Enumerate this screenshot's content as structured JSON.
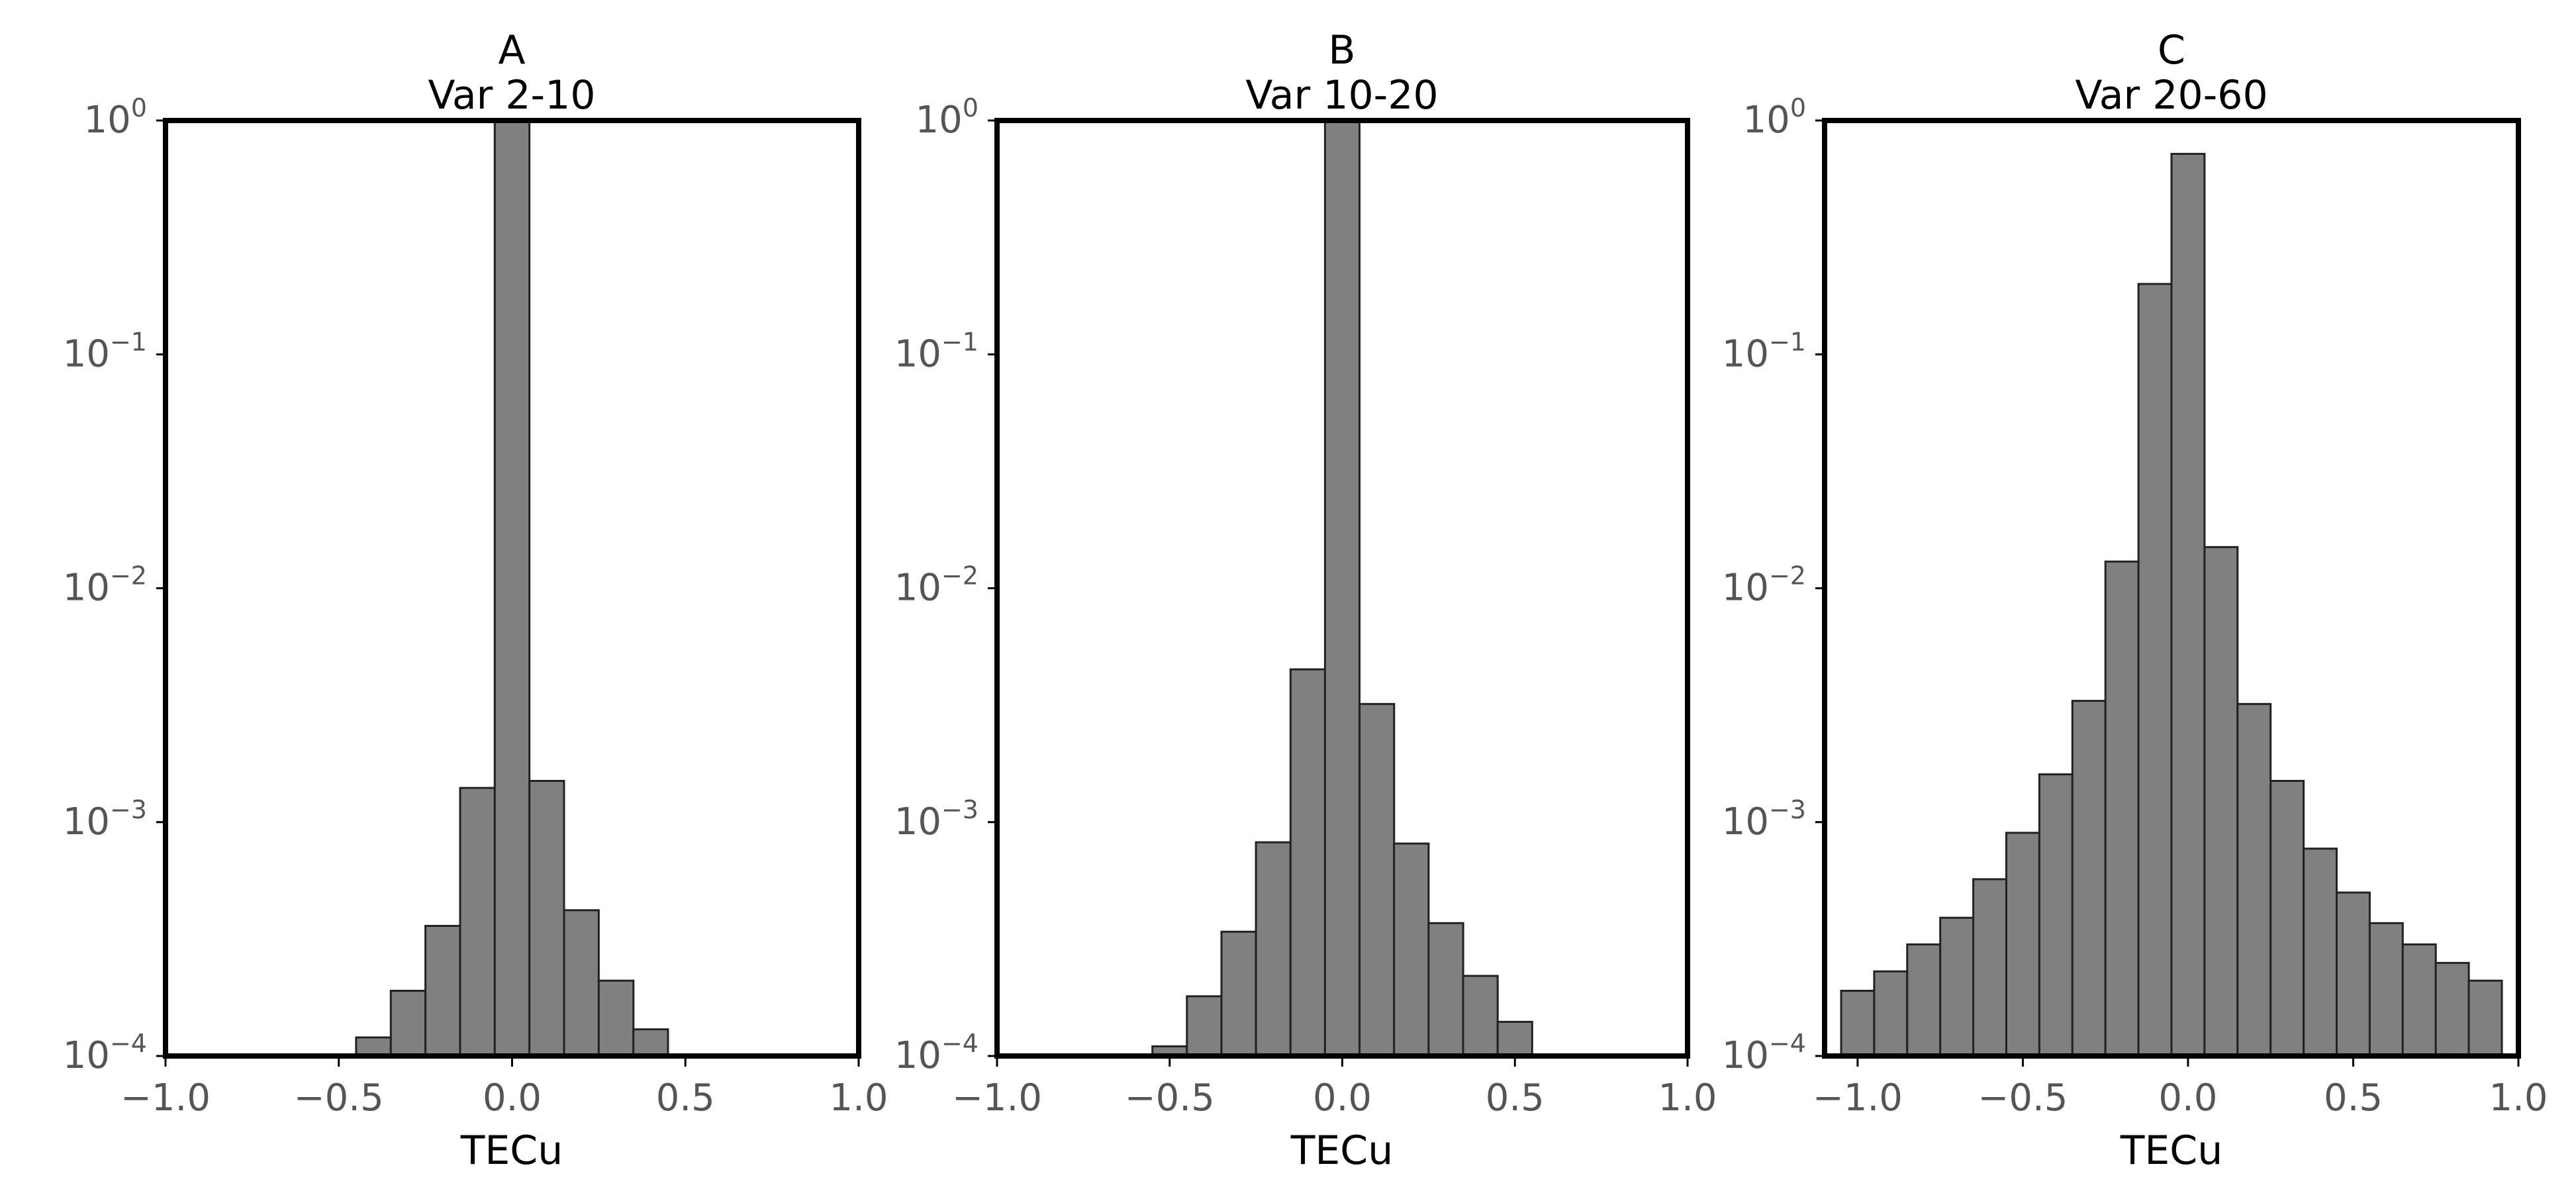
{
  "chart_data": [
    {
      "type": "bar",
      "panel_label": "A",
      "title": "Var 2-10",
      "xlabel": "TECu",
      "ylabel": "",
      "y_scale": "log",
      "xlim": [
        -1.0,
        1.0
      ],
      "ylim": [
        0.0001,
        1
      ],
      "x_ticks": [
        "−1.0",
        "−0.5",
        "0.0",
        "0.5",
        "1.0"
      ],
      "y_ticks": [
        {
          "base": "10",
          "exp": "0"
        },
        {
          "base": "10",
          "exp": "−1"
        },
        {
          "base": "10",
          "exp": "−2"
        },
        {
          "base": "10",
          "exp": "−3"
        },
        {
          "base": "10",
          "exp": "−4"
        }
      ],
      "bin_edges": [
        -0.45,
        -0.35,
        -0.25,
        -0.15,
        -0.05,
        0.05,
        0.15,
        0.25,
        0.35,
        0.45
      ],
      "values": [
        0.00012,
        0.00019,
        0.00036,
        0.0014,
        1.0,
        0.0015,
        0.00042,
        0.00021,
        0.00013
      ],
      "bar_color": "#808080",
      "edge_color": "#222222",
      "grid": false
    },
    {
      "type": "bar",
      "panel_label": "B",
      "title": "Var 10-20",
      "xlabel": "TECu",
      "ylabel": "",
      "y_scale": "log",
      "xlim": [
        -1.0,
        1.0
      ],
      "ylim": [
        0.0001,
        1
      ],
      "x_ticks": [
        "−1.0",
        "−0.5",
        "0.0",
        "0.5",
        "1.0"
      ],
      "y_ticks": [
        {
          "base": "10",
          "exp": "0"
        },
        {
          "base": "10",
          "exp": "−1"
        },
        {
          "base": "10",
          "exp": "−2"
        },
        {
          "base": "10",
          "exp": "−3"
        },
        {
          "base": "10",
          "exp": "−4"
        }
      ],
      "bin_edges": [
        -0.55,
        -0.45,
        -0.35,
        -0.25,
        -0.15,
        -0.05,
        0.05,
        0.15,
        0.25,
        0.35,
        0.45,
        0.55
      ],
      "values": [
        0.00011,
        0.00018,
        0.00034,
        0.00082,
        0.0045,
        1.0,
        0.0032,
        0.00081,
        0.00037,
        0.00022,
        0.00014
      ],
      "bar_color": "#808080",
      "edge_color": "#222222",
      "grid": false
    },
    {
      "type": "bar",
      "panel_label": "C",
      "title": "Var 20-60",
      "xlabel": "TECu",
      "ylabel": "",
      "y_scale": "log",
      "xlim": [
        -1.1,
        1.0
      ],
      "ylim": [
        0.0001,
        1
      ],
      "x_ticks": [
        "−1.0",
        "−0.5",
        "0.0",
        "0.5",
        "1.0"
      ],
      "y_ticks": [
        {
          "base": "10",
          "exp": "0"
        },
        {
          "base": "10",
          "exp": "−1"
        },
        {
          "base": "10",
          "exp": "−2"
        },
        {
          "base": "10",
          "exp": "−3"
        },
        {
          "base": "10",
          "exp": "−4"
        }
      ],
      "bin_edges": [
        -1.05,
        -0.95,
        -0.85,
        -0.75,
        -0.65,
        -0.55,
        -0.45,
        -0.35,
        -0.25,
        -0.15,
        -0.05,
        0.05,
        0.15,
        0.25,
        0.35,
        0.45,
        0.55,
        0.65,
        0.75,
        0.85,
        0.95
      ],
      "values": [
        0.00019,
        0.00023,
        0.0003,
        0.00039,
        0.00057,
        0.0009,
        0.0016,
        0.0033,
        0.013,
        0.2,
        0.72,
        0.015,
        0.0032,
        0.0015,
        0.00077,
        0.0005,
        0.00037,
        0.0003,
        0.00025,
        0.00021
      ],
      "bar_color": "#808080",
      "edge_color": "#222222",
      "grid": false
    }
  ]
}
